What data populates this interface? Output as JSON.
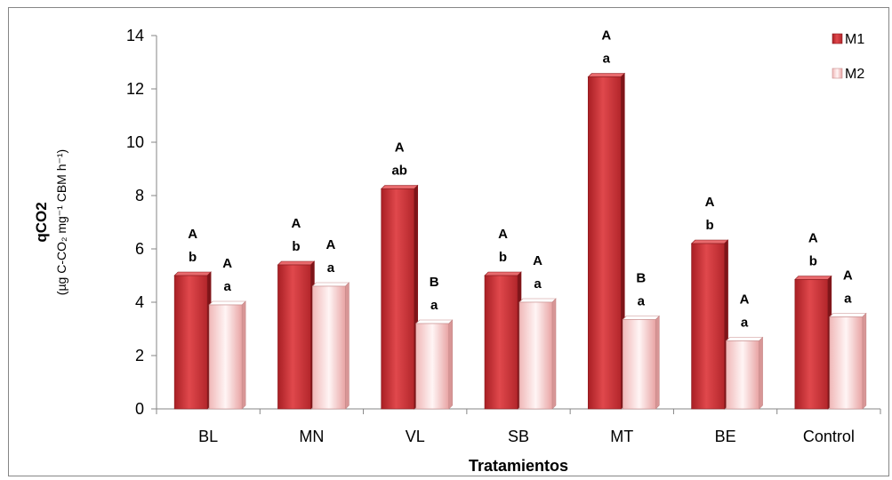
{
  "chart_data": {
    "type": "bar",
    "categories": [
      "BL",
      "MN",
      "VL",
      "SB",
      "MT",
      "BE",
      "Control"
    ],
    "series": [
      {
        "name": "M1",
        "values": [
          5.0,
          5.4,
          8.25,
          5.0,
          12.45,
          6.2,
          4.85
        ],
        "labels_upper": [
          "A",
          "A",
          "A",
          "A",
          "A",
          "A",
          "A"
        ],
        "labels_lower": [
          "b",
          "b",
          "ab",
          "b",
          "a",
          "b",
          "b"
        ]
      },
      {
        "name": "M2",
        "values": [
          3.9,
          4.6,
          3.2,
          4.0,
          3.35,
          2.55,
          3.45
        ],
        "labels_upper": [
          "A",
          "A",
          "B",
          "A",
          "B",
          "A",
          "A"
        ],
        "labels_lower": [
          "a",
          "a",
          "a",
          "a",
          "a",
          "a",
          "a"
        ]
      }
    ],
    "xlabel": "Tratamientos",
    "ylabel": "qCO2",
    "ylabel_unit": "(µg C-CO₂ mg⁻¹ CBM h⁻¹)",
    "ylim": [
      0,
      14
    ],
    "yticks": [
      "0",
      "2",
      "4",
      "6",
      "8",
      "10",
      "12",
      "14"
    ],
    "grid": false,
    "legend_position": "top-right",
    "colors": {
      "M1_dark": "#b3262b",
      "M1_mid": "#e0484c",
      "M1_light": "#d03238",
      "M2_dark": "#e9a5a5",
      "M2_light": "#fff2f2",
      "axis": "#868686"
    }
  }
}
